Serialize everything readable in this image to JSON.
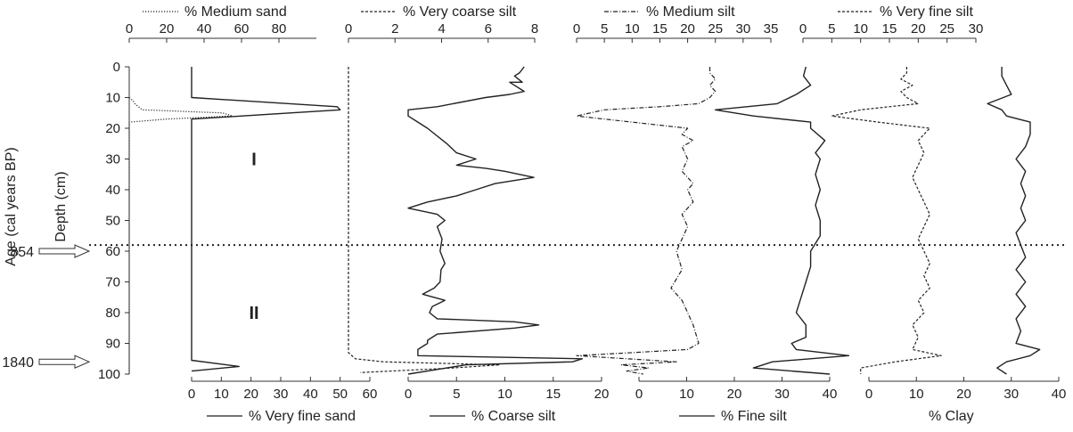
{
  "chart_data": {
    "type": "line",
    "y_axis": {
      "label": "Depth (cm)",
      "ticks": [
        0,
        10,
        20,
        30,
        40,
        50,
        60,
        70,
        80,
        90,
        100
      ],
      "range": [
        0,
        100
      ],
      "inverted": true
    },
    "age_axis": {
      "label": "Age (cal years BP)",
      "markers": [
        {
          "depth": 60,
          "label": "854"
        },
        {
          "depth": 96,
          "label": "1840"
        }
      ]
    },
    "zone_boundary": {
      "depth": 58,
      "style": "dotted"
    },
    "zones": [
      {
        "label": "I",
        "depth": 30
      },
      {
        "label": "II",
        "depth": 80
      }
    ],
    "panels": [
      {
        "top_axis": {
          "ticks": [
            0,
            20,
            40,
            60,
            80
          ],
          "range": [
            0,
            100
          ]
        },
        "bottom_axis": {
          "ticks": [
            0,
            10,
            20,
            30,
            40,
            50,
            60
          ],
          "range": [
            0,
            60
          ]
        },
        "series": [
          {
            "name": "% Medium sand",
            "axis": "top",
            "style": "dotted",
            "points": [
              [
                0,
                10
              ],
              [
                2,
                11
              ],
              [
                3,
                12
              ],
              [
                5,
                13
              ],
              [
                7,
                14
              ],
              [
                50,
                15
              ],
              [
                55,
                16
              ],
              [
                20,
                17
              ],
              [
                0,
                18
              ],
              [
                0,
                100
              ]
            ]
          },
          {
            "name": "% Very fine sand",
            "axis": "bottom",
            "style": "solid",
            "points": [
              [
                0,
                0
              ],
              [
                0,
                10
              ],
              [
                49,
                13
              ],
              [
                50,
                14
              ],
              [
                0,
                17
              ],
              [
                0,
                18
              ],
              [
                0,
                95.5
              ],
              [
                16,
                97.5
              ],
              [
                0,
                99
              ]
            ]
          }
        ]
      },
      {
        "top_axis": {
          "ticks": [
            0,
            2,
            4,
            6,
            8
          ],
          "range": [
            0,
            8
          ]
        },
        "bottom_axis": {
          "ticks": [
            0,
            5,
            10,
            15,
            20
          ],
          "range": [
            0,
            20
          ]
        },
        "series": [
          {
            "name": "% Very coarse silt",
            "axis": "top",
            "style": "dashed",
            "points": [
              [
                0,
                0
              ],
              [
                0,
                93
              ],
              [
                0.3,
                95
              ],
              [
                1.5,
                96
              ],
              [
                6.5,
                97
              ],
              [
                4.5,
                98
              ],
              [
                0.5,
                99.5
              ]
            ]
          },
          {
            "name": "% Coarse silt",
            "axis": "bottom",
            "style": "solid",
            "points": [
              [
                12,
                0
              ],
              [
                11.5,
                2
              ],
              [
                11,
                3
              ],
              [
                11.8,
                5
              ],
              [
                10.5,
                5
              ],
              [
                12,
                8
              ],
              [
                10.5,
                9
              ],
              [
                8,
                10
              ],
              [
                3,
                13
              ],
              [
                0,
                14
              ],
              [
                0,
                16
              ],
              [
                1,
                18
              ],
              [
                2,
                20
              ],
              [
                4,
                25
              ],
              [
                5,
                28
              ],
              [
                7,
                30
              ],
              [
                5,
                32
              ],
              [
                8,
                33
              ],
              [
                10,
                34
              ],
              [
                13,
                36
              ],
              [
                9,
                38
              ],
              [
                7,
                40
              ],
              [
                5,
                42
              ],
              [
                2,
                44
              ],
              [
                0,
                46
              ],
              [
                3,
                48
              ],
              [
                3.8,
                50
              ],
              [
                3,
                52
              ],
              [
                3.5,
                56
              ],
              [
                3.3,
                60
              ],
              [
                3.8,
                64
              ],
              [
                3.4,
                66
              ],
              [
                3.3,
                70
              ],
              [
                2.7,
                72
              ],
              [
                1.5,
                74
              ],
              [
                3.8,
                76
              ],
              [
                2.5,
                78
              ],
              [
                2.2,
                80
              ],
              [
                3,
                82
              ],
              [
                11,
                83
              ],
              [
                13.5,
                84
              ],
              [
                11,
                85
              ],
              [
                3,
                87
              ],
              [
                2,
                89
              ],
              [
                2,
                90
              ],
              [
                1,
                92
              ],
              [
                1,
                94
              ],
              [
                18,
                95
              ],
              [
                17,
                96
              ],
              [
                6,
                97
              ],
              [
                0,
                100
              ]
            ]
          }
        ]
      },
      {
        "top_axis": {
          "ticks": [
            0,
            5,
            10,
            15,
            20,
            25,
            30,
            35
          ],
          "range": [
            0,
            35
          ]
        },
        "bottom_axis": {
          "ticks": [
            0,
            10,
            20,
            30,
            40
          ],
          "range": [
            0,
            40
          ]
        },
        "series": [
          {
            "name": "% Medium silt",
            "axis": "top",
            "style": "dash-dot",
            "points": [
              [
                24,
                0
              ],
              [
                24,
                2
              ],
              [
                25,
                4
              ],
              [
                24,
                6
              ],
              [
                25,
                8
              ],
              [
                24,
                10
              ],
              [
                22,
                12
              ],
              [
                15,
                13
              ],
              [
                5,
                14
              ],
              [
                0,
                16
              ],
              [
                5,
                17
              ],
              [
                10,
                18
              ],
              [
                20,
                20
              ],
              [
                19,
                22
              ],
              [
                21,
                24
              ],
              [
                19,
                26
              ],
              [
                20,
                30
              ],
              [
                19,
                34
              ],
              [
                21,
                38
              ],
              [
                20,
                40
              ],
              [
                21,
                44
              ],
              [
                19,
                48
              ],
              [
                20,
                52
              ],
              [
                19,
                56
              ],
              [
                18,
                60
              ],
              [
                19,
                66
              ],
              [
                17,
                72
              ],
              [
                19,
                76
              ],
              [
                20,
                80
              ],
              [
                21,
                84
              ],
              [
                22,
                90
              ],
              [
                20,
                92
              ],
              [
                10,
                93
              ],
              [
                0,
                94
              ],
              [
                18,
                96
              ],
              [
                8,
                97
              ],
              [
                13,
                98
              ],
              [
                9,
                99
              ],
              [
                12,
                100
              ]
            ]
          },
          {
            "name": "% Fine silt",
            "axis": "bottom",
            "style": "solid",
            "points": [
              [
                35,
                0
              ],
              [
                34.5,
                3
              ],
              [
                36,
                6
              ],
              [
                33,
                9
              ],
              [
                29,
                12
              ],
              [
                16,
                14
              ],
              [
                24,
                16
              ],
              [
                36,
                18
              ],
              [
                36,
                20
              ],
              [
                39,
                24
              ],
              [
                37,
                28
              ],
              [
                38,
                30
              ],
              [
                37,
                35
              ],
              [
                38,
                40
              ],
              [
                37,
                45
              ],
              [
                38,
                50
              ],
              [
                38,
                55
              ],
              [
                36,
                60
              ],
              [
                36,
                65
              ],
              [
                35,
                70
              ],
              [
                34,
                75
              ],
              [
                33,
                80
              ],
              [
                35,
                84
              ],
              [
                35,
                88
              ],
              [
                32,
                90
              ],
              [
                33,
                92
              ],
              [
                44,
                94
              ],
              [
                28,
                96
              ],
              [
                24,
                98
              ],
              [
                40,
                100
              ]
            ]
          }
        ]
      },
      {
        "top_axis": {
          "ticks": [
            0,
            5,
            10,
            15,
            20,
            25,
            30
          ],
          "range": [
            0,
            30
          ]
        },
        "bottom_axis": {
          "ticks": [
            0,
            10,
            20,
            30,
            40
          ],
          "range": [
            0,
            40
          ]
        },
        "series": [
          {
            "name": "% Very fine silt",
            "axis": "top",
            "style": "dashed",
            "points": [
              [
                18,
                0
              ],
              [
                18,
                2
              ],
              [
                17,
                4
              ],
              [
                19,
                6
              ],
              [
                17,
                8
              ],
              [
                18,
                10
              ],
              [
                20,
                12
              ],
              [
                15,
                13
              ],
              [
                10,
                14
              ],
              [
                5,
                16
              ],
              [
                13,
                18
              ],
              [
                22,
                20
              ],
              [
                20,
                24
              ],
              [
                21,
                28
              ],
              [
                20,
                32
              ],
              [
                19,
                36
              ],
              [
                20,
                40
              ],
              [
                21,
                44
              ],
              [
                22,
                48
              ],
              [
                21,
                52
              ],
              [
                20,
                56
              ],
              [
                21,
                60
              ],
              [
                22,
                64
              ],
              [
                21,
                68
              ],
              [
                22,
                72
              ],
              [
                20,
                76
              ],
              [
                21,
                80
              ],
              [
                19,
                84
              ],
              [
                20,
                88
              ],
              [
                19,
                92
              ],
              [
                24,
                94
              ],
              [
                16,
                96
              ],
              [
                10,
                98
              ],
              [
                10,
                100
              ]
            ]
          },
          {
            "name": "% Clay",
            "axis": "bottom",
            "style": "solid",
            "points": [
              [
                28,
                0
              ],
              [
                28,
                3
              ],
              [
                29,
                6
              ],
              [
                30,
                9
              ],
              [
                25,
                12
              ],
              [
                28,
                14
              ],
              [
                29,
                16
              ],
              [
                34,
                18
              ],
              [
                34,
                22
              ],
              [
                33,
                26
              ],
              [
                31,
                30
              ],
              [
                33,
                34
              ],
              [
                32,
                38
              ],
              [
                33,
                42
              ],
              [
                32,
                46
              ],
              [
                33,
                50
              ],
              [
                31,
                54
              ],
              [
                32,
                58
              ],
              [
                33,
                62
              ],
              [
                31,
                66
              ],
              [
                33,
                70
              ],
              [
                31,
                74
              ],
              [
                33,
                78
              ],
              [
                31,
                82
              ],
              [
                32,
                86
              ],
              [
                31,
                90
              ],
              [
                36,
                92
              ],
              [
                34,
                94
              ],
              [
                29,
                96
              ],
              [
                27,
                98
              ],
              [
                29,
                100
              ]
            ]
          }
        ]
      }
    ]
  }
}
